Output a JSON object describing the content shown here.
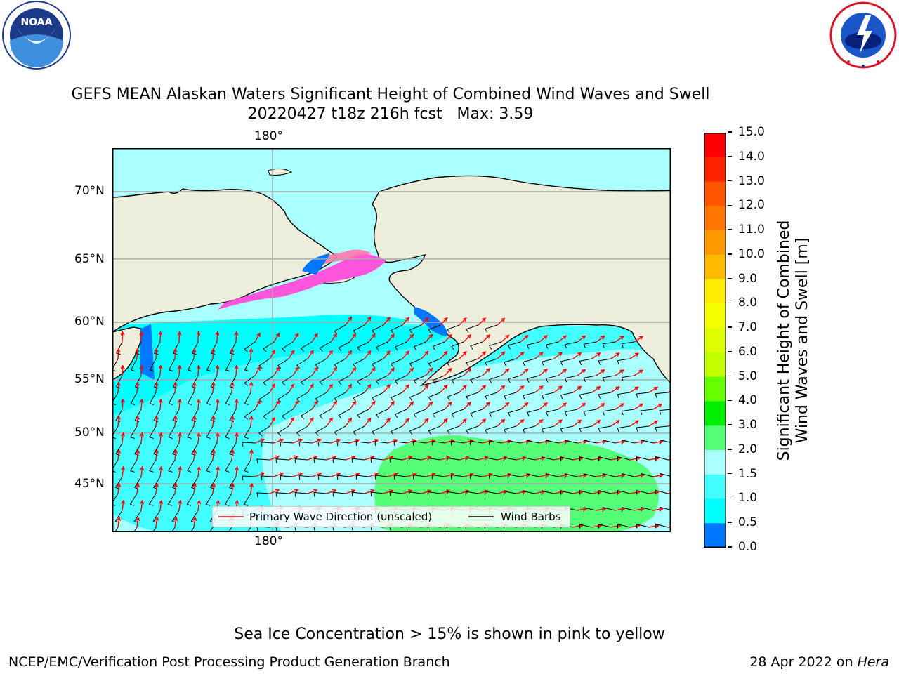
{
  "logos": {
    "noaa": {
      "center_text": "NOAA",
      "ring_text": "NATIONAL OCEANIC AND ATMOSPHERIC ADMINISTRATION · U.S. DEPARTMENT OF COMMERCE"
    },
    "nws": {
      "ring_text": "NATIONAL WEATHER SERVICE"
    }
  },
  "title": {
    "line1": "GEFS MEAN Alaskan Waters Significant Height of Combined Wind Waves and Swell",
    "line2": "20220427 t18z 216h fcst   Max: 3.59"
  },
  "map": {
    "lat_labels": [
      "70°N",
      "65°N",
      "60°N",
      "55°N",
      "50°N",
      "45°N"
    ],
    "lon_label_top": "180°",
    "lon_label_bottom": "180°",
    "colors": {
      "land": "#eeeedc",
      "ocean_1_15": "#00ffff",
      "ocean_15_2": "#44ffff",
      "ocean_2_3": "#aaffff",
      "ocean_3_4": "#55ff77",
      "wave_arrow": "#ff0000",
      "wind_barb": "#000000",
      "ice": "#ff55dd"
    }
  },
  "legend": {
    "wave": "Primary Wave Direction (unscaled)",
    "wind": "Wind Barbs"
  },
  "colorbar": {
    "label_line1": "Significant Height of Combined",
    "label_line2": "Wind Waves and Swell [m]",
    "ticks": [
      "15.0",
      "14.0",
      "13.0",
      "12.0",
      "11.0",
      "10.0",
      "9.0",
      "8.0",
      "7.0",
      "6.0",
      "5.0",
      "4.0",
      "3.0",
      "2.0",
      "1.5",
      "1.0",
      "0.5",
      "0.0"
    ],
    "colors_top_to_bottom": [
      "#ff0000",
      "#ff2200",
      "#ff5500",
      "#ff7700",
      "#ff9900",
      "#ffbb00",
      "#ffee00",
      "#f5ff00",
      "#ddff00",
      "#c4ff00",
      "#66ff00",
      "#00ee00",
      "#55ff77",
      "#aaffff",
      "#44ffff",
      "#00ffff",
      "#0077ff",
      "#0000ff"
    ]
  },
  "note": "Sea Ice Concentration > 15% is shown in pink to yellow",
  "footer": {
    "left": "NCEP/EMC/Verification Post Processing Product Generation Branch",
    "right_prefix": "28 Apr 2022 on ",
    "right_italic": "Hera"
  }
}
